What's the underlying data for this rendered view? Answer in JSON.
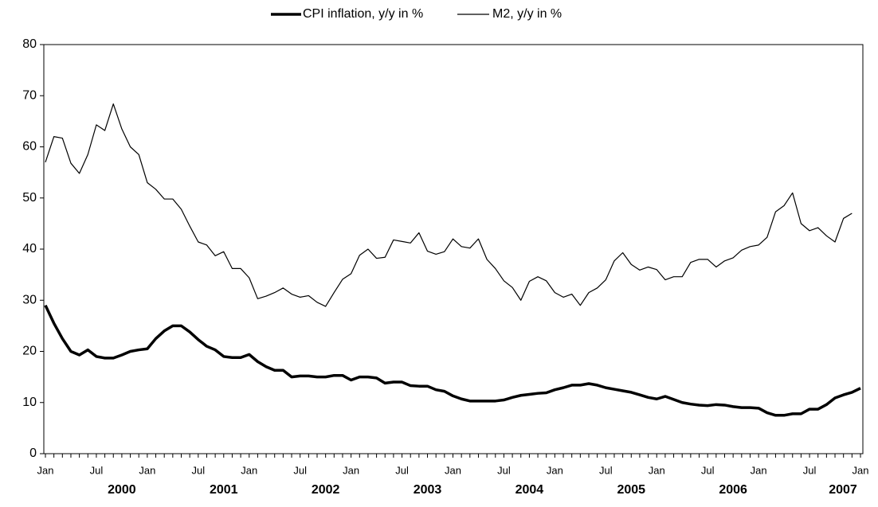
{
  "chart_data": {
    "type": "line",
    "categories": [
      "Jan",
      null,
      null,
      null,
      null,
      null,
      "Jul",
      null,
      null,
      null,
      null,
      null,
      "Jan",
      null,
      null,
      null,
      null,
      null,
      "Jul",
      null,
      null,
      null,
      null,
      null,
      "Jan",
      null,
      null,
      null,
      null,
      null,
      "Jul",
      null,
      null,
      null,
      null,
      null,
      "Jan",
      null,
      null,
      null,
      null,
      null,
      "Jul",
      null,
      null,
      null,
      null,
      null,
      "Jan",
      null,
      null,
      null,
      null,
      null,
      "Jul",
      null,
      null,
      null,
      null,
      null,
      "Jan",
      null,
      null,
      null,
      null,
      null,
      "Jul",
      null,
      null,
      null,
      null,
      null,
      "Jan",
      null,
      null,
      null,
      null,
      null,
      "Jul",
      null,
      null,
      null,
      null,
      null,
      "Jan",
      null,
      null,
      null,
      null,
      null,
      "Jul",
      null,
      null,
      null,
      null,
      null,
      "Jan"
    ],
    "year_labels": [
      "2000",
      "2001",
      "2002",
      "2003",
      "2004",
      "2005",
      "2006",
      "2007"
    ],
    "series": [
      {
        "name": "CPI inflation, y/y in %",
        "color": "#000000",
        "line_width": 3.5,
        "values": [
          29,
          25.5,
          22.5,
          20,
          19.3,
          20.3,
          19,
          18.7,
          18.7,
          19.3,
          20,
          20.3,
          20.5,
          22.5,
          24,
          25,
          25,
          23.8,
          22.3,
          21,
          20.3,
          19,
          18.8,
          18.8,
          19.4,
          18,
          17,
          16.3,
          16.3,
          15,
          15.2,
          15.2,
          15,
          15,
          15.3,
          15.3,
          14.4,
          15,
          15,
          14.8,
          13.8,
          14,
          14,
          13.3,
          13.2,
          13.2,
          12.5,
          12.2,
          11.3,
          10.7,
          10.3,
          10.3,
          10.3,
          10.3,
          10.5,
          11,
          11.4,
          11.6,
          11.8,
          11.9,
          12.5,
          12.9,
          13.4,
          13.4,
          13.7,
          13.4,
          12.9,
          12.6,
          12.3,
          12,
          11.5,
          11,
          10.7,
          11.2,
          10.6,
          10,
          9.7,
          9.5,
          9.4,
          9.6,
          9.5,
          9.2,
          9,
          9,
          8.9,
          8,
          7.5,
          7.5,
          7.8,
          7.8,
          8.7,
          8.7,
          9.6,
          10.9,
          11.5,
          12,
          12.8
        ]
      },
      {
        "name": "M2, y/y in %",
        "color": "#000000",
        "line_width": 1.2,
        "values": [
          57,
          62,
          61.7,
          56.8,
          54.8,
          58.5,
          64.3,
          63.2,
          68.4,
          63.5,
          60,
          58.5,
          53,
          51.7,
          49.8,
          49.8,
          47.8,
          44.5,
          41.4,
          40.8,
          38.7,
          39.5,
          36.2,
          36.2,
          34.4,
          30.3,
          30.8,
          31.5,
          32.4,
          31.2,
          30.6,
          30.9,
          29.6,
          28.8,
          31.5,
          34.1,
          35.2,
          38.8,
          40,
          38.2,
          38.4,
          41.8,
          41.5,
          41.2,
          43.2,
          39.6,
          39,
          39.5,
          42,
          40.5,
          40.2,
          42,
          38,
          36.2,
          33.8,
          32.5,
          30,
          33.7,
          34.6,
          33.8,
          31.5,
          30.6,
          31.2,
          29,
          31.5,
          32.4,
          34,
          37.7,
          39.3,
          37,
          35.9,
          36.5,
          36,
          34,
          34.6,
          34.6,
          37.4,
          38,
          38,
          36.5,
          37.7,
          38.3,
          39.8,
          40.5,
          40.8,
          42.3,
          47.3,
          48.5,
          51,
          45,
          43.6,
          44.2,
          42.6,
          41.4,
          46,
          47,
          null
        ]
      }
    ],
    "ylim": [
      0,
      80
    ],
    "yticks": [
      0,
      10,
      20,
      30,
      40,
      50,
      60,
      70,
      80
    ],
    "grid": false,
    "legend": "top"
  }
}
